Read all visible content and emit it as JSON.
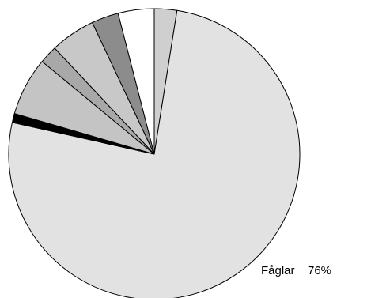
{
  "chart_data": {
    "type": "pie",
    "categories": [
      null,
      "Fåglar",
      null,
      null,
      null,
      null,
      null,
      null
    ],
    "values": [
      2.5,
      76,
      1,
      6.5,
      2,
      5,
      3,
      4
    ],
    "value_labels": [
      null,
      "76%",
      null,
      null,
      null,
      null,
      null,
      null
    ],
    "colors": [
      "#cfcfcf",
      "#e2e2e2",
      "#000000",
      "#c4c4c4",
      "#a8a8a8",
      "#c8c8c8",
      "#8c8c8c",
      "#ffffff"
    ]
  }
}
